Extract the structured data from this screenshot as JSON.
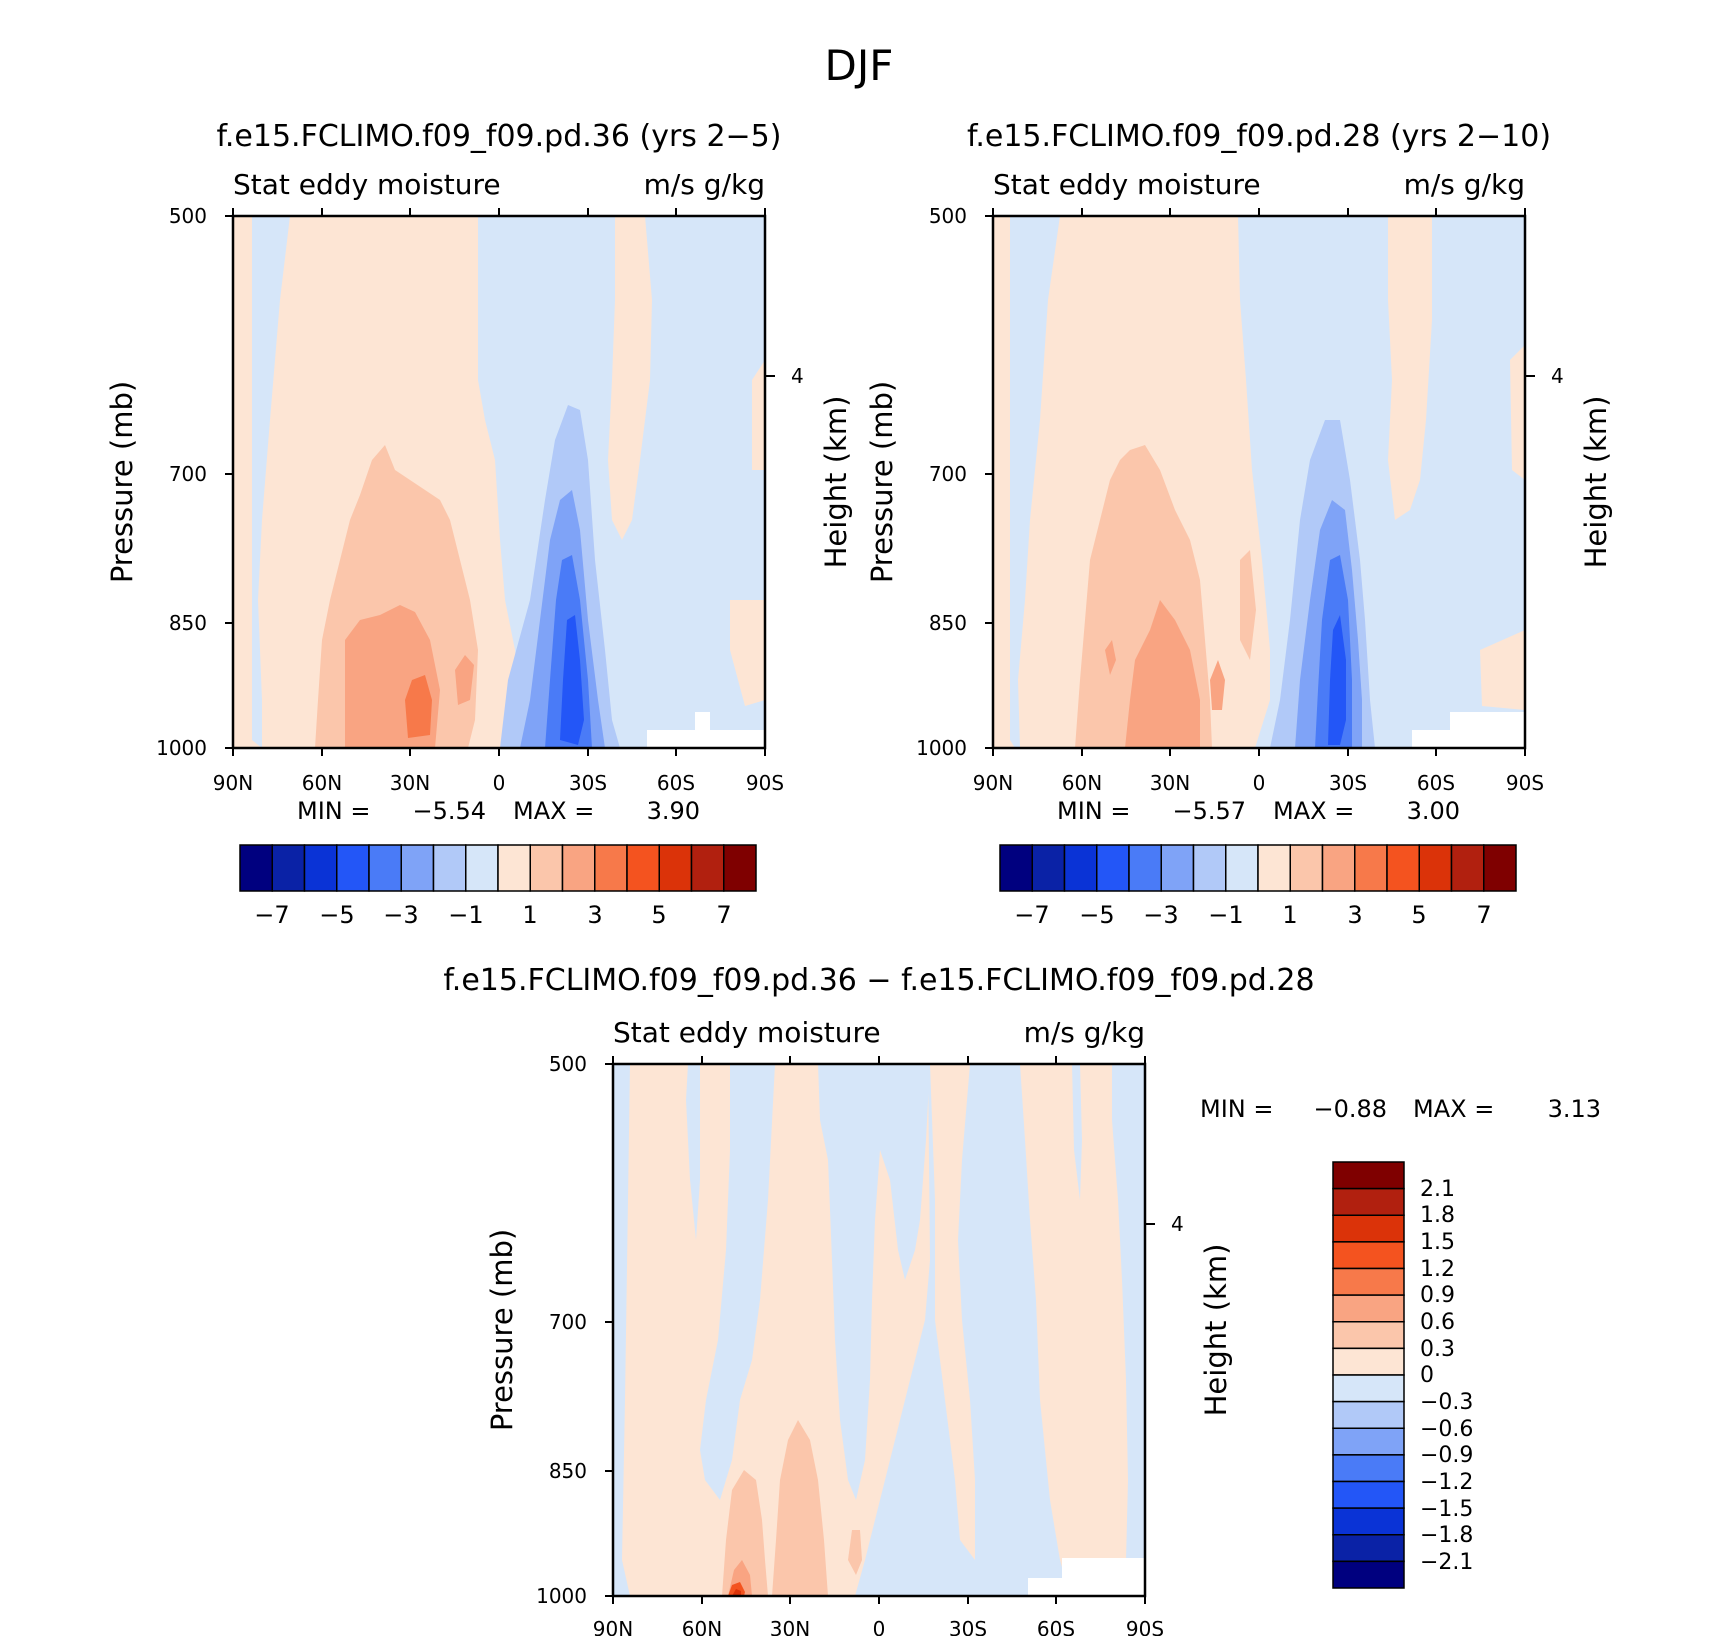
{
  "figure": {
    "title": "DJF"
  },
  "chart_data": [
    {
      "type": "heatmap",
      "panel_title": "f.e15.FCLIMO.f09_f09.pd.36 (yrs 2−5)",
      "left_string": "Stat eddy moisture",
      "right_string": "m/s g/kg",
      "xlabel": "",
      "ylabel": "Pressure (mb)",
      "ylabel_right": "Height (km)",
      "x_ticks": [
        "90N",
        "60N",
        "30N",
        "0",
        "30S",
        "60S",
        "90S"
      ],
      "y_ticks": [
        "500",
        "700",
        "850",
        "1000"
      ],
      "y_right_ticks": [
        "4"
      ],
      "xlim": [
        90,
        -90
      ],
      "ylim": [
        1000,
        500
      ],
      "y_scale": "log",
      "min_label": "MIN =",
      "min_value": "−5.54",
      "max_label": "MAX =",
      "max_value": "3.90",
      "colorbar_labels": [
        "−7",
        "−5",
        "−3",
        "−1",
        "1",
        "3",
        "5",
        "7"
      ],
      "min": -5.54,
      "max": 3.9
    },
    {
      "type": "heatmap",
      "panel_title": "f.e15.FCLIMO.f09_f09.pd.28 (yrs 2−10)",
      "left_string": "Stat eddy moisture",
      "right_string": "m/s g/kg",
      "xlabel": "",
      "ylabel": "Pressure (mb)",
      "ylabel_right": "Height (km)",
      "x_ticks": [
        "90N",
        "60N",
        "30N",
        "0",
        "30S",
        "60S",
        "90S"
      ],
      "y_ticks": [
        "500",
        "700",
        "850",
        "1000"
      ],
      "y_right_ticks": [
        "4"
      ],
      "xlim": [
        90,
        -90
      ],
      "ylim": [
        1000,
        500
      ],
      "y_scale": "log",
      "min_label": "MIN =",
      "min_value": "−5.57",
      "max_label": "MAX =",
      "max_value": "3.00",
      "colorbar_labels": [
        "−7",
        "−5",
        "−3",
        "−1",
        "1",
        "3",
        "5",
        "7"
      ],
      "min": -5.57,
      "max": 3.0
    },
    {
      "type": "heatmap",
      "panel_title": "f.e15.FCLIMO.f09_f09.pd.36 − f.e15.FCLIMO.f09_f09.pd.28",
      "left_string": "Stat eddy moisture",
      "right_string": "m/s g/kg",
      "xlabel": "",
      "ylabel": "Pressure (mb)",
      "ylabel_right": "Height (km)",
      "x_ticks": [
        "90N",
        "60N",
        "30N",
        "0",
        "30S",
        "60S",
        "90S"
      ],
      "y_ticks": [
        "500",
        "700",
        "850",
        "1000"
      ],
      "y_right_ticks": [
        "4"
      ],
      "xlim": [
        90,
        -90
      ],
      "ylim": [
        1000,
        500
      ],
      "y_scale": "log",
      "min_label": "MIN =",
      "min_value": "−0.88",
      "max_label": "MAX =",
      "max_value": "3.13",
      "colorbar_labels": [
        "2.1",
        "1.8",
        "1.5",
        "1.2",
        "0.9",
        "0.6",
        "0.3",
        "0",
        "−0.3",
        "−0.6",
        "−0.9",
        "−1.2",
        "−1.5",
        "−1.8",
        "−2.1"
      ],
      "min": -0.88,
      "max": 3.13
    }
  ],
  "colors": {
    "palette": [
      "#00007f",
      "#0a22a6",
      "#0a33d6",
      "#2356f7",
      "#4a7bf7",
      "#7fa3f7",
      "#b1c9f8",
      "#d6e6f9",
      "#fde5d4",
      "#fbc6ab",
      "#f9a482",
      "#f7794a",
      "#f4531f",
      "#db3309",
      "#b1200f",
      "#7f0000"
    ]
  }
}
